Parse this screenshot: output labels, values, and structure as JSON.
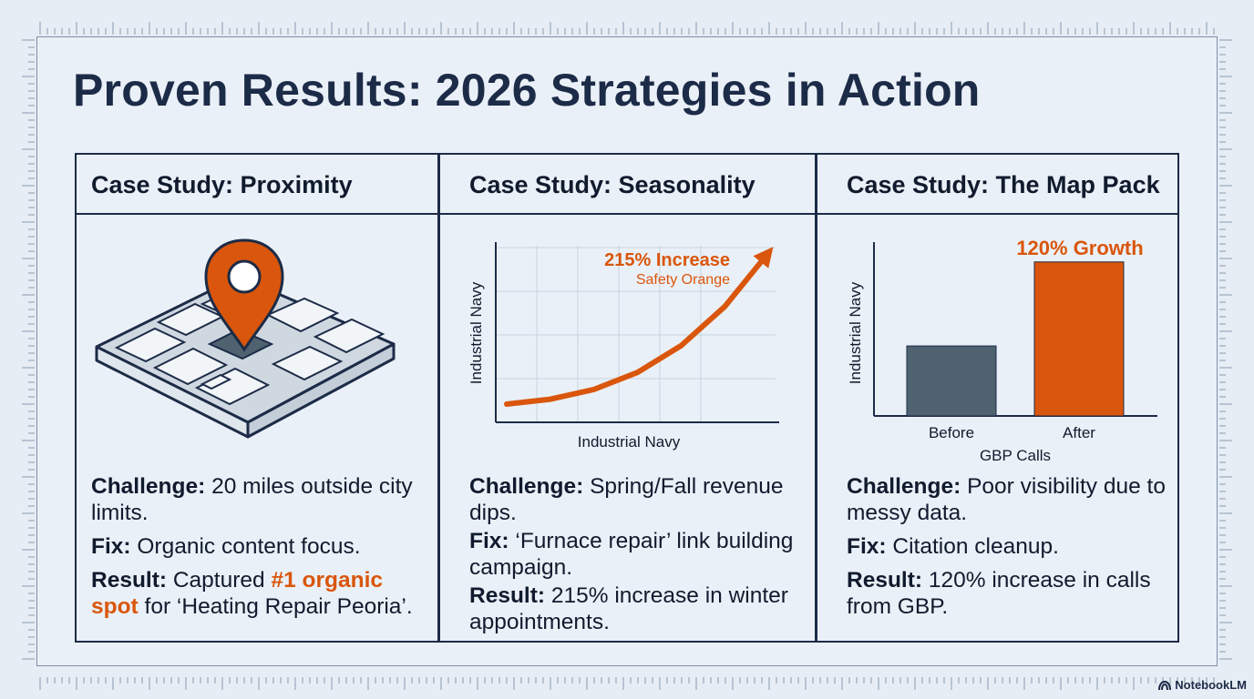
{
  "title": "Proven Results: 2026 Strategies in Action",
  "colors": {
    "navy": "#1c2b47",
    "orange": "#d9560c",
    "slate": "#4e6270",
    "bg": "#e6edf5"
  },
  "panels": [
    {
      "header": "Case Study: Proximity",
      "visual": "map-pin-icon",
      "challenge_label": "Challenge:",
      "challenge": "20 miles outside city limits.",
      "fix_label": "Fix:",
      "fix": "Organic content focus.",
      "result_label": "Result:",
      "result_pre": "Captured",
      "result_highlight": "#1 organic spot",
      "result_post": "for ‘Heating Repair Peoria’."
    },
    {
      "header": "Case Study: Seasonality",
      "challenge_label": "Challenge:",
      "challenge": "Spring/Fall revenue dips.",
      "fix_label": "Fix:",
      "fix": "‘Furnace repair’ link building campaign.",
      "result_label": "Result:",
      "result": "215% increase in winter appointments."
    },
    {
      "header": "Case Study: The Map Pack",
      "challenge_label": "Challenge:",
      "challenge": "Poor visibility due to messy data.",
      "fix_label": "Fix:",
      "fix": "Citation cleanup.",
      "result_label": "Result:",
      "result": "120% increase in calls from GBP."
    }
  ],
  "chart_data": [
    {
      "type": "line",
      "title": "",
      "xlabel": "Industrial Navy",
      "ylabel": "Industrial Navy",
      "annotation": "215% Increase",
      "annotation_sub": "Safety Orange",
      "x": [
        0,
        1,
        2,
        3,
        4,
        5,
        6
      ],
      "y": [
        0,
        2,
        6,
        13,
        24,
        40,
        62
      ],
      "xlim": [
        0,
        6
      ],
      "ylim": [
        0,
        65
      ],
      "grid": true
    },
    {
      "type": "bar",
      "title": "",
      "annotation": "120% Growth",
      "categories": [
        "Before",
        "After"
      ],
      "values": [
        100,
        220
      ],
      "xlabel": "GBP Calls",
      "ylabel": "Industrial Navy",
      "ylim": [
        0,
        260
      ]
    }
  ],
  "footer": {
    "brand": "NotebookLM"
  }
}
